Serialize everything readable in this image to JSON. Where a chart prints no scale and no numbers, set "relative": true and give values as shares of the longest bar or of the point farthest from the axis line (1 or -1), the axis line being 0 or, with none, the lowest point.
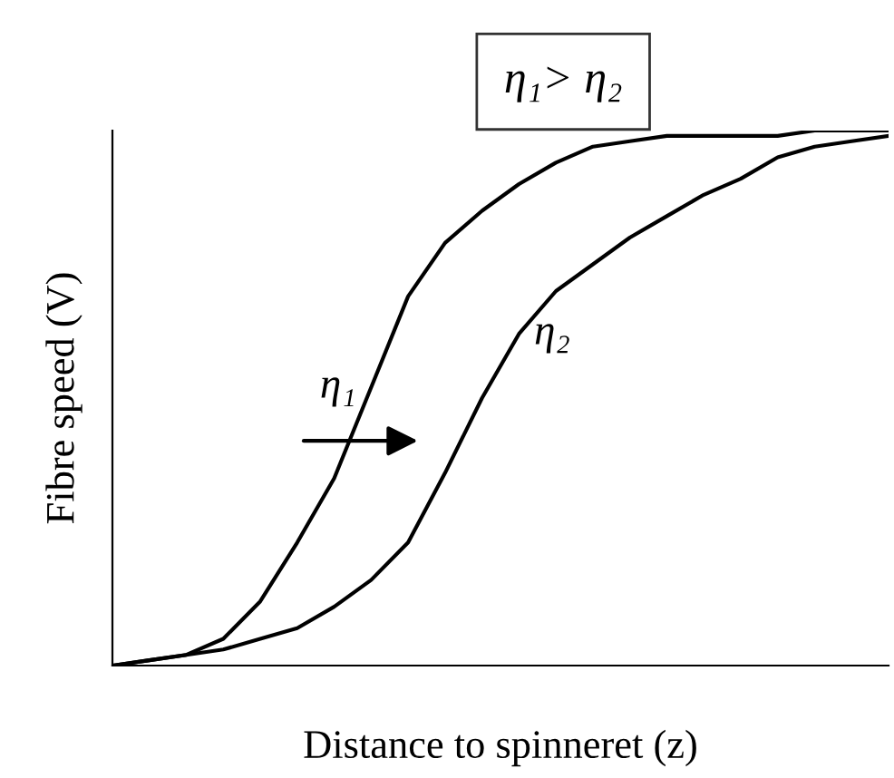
{
  "chart_data": {
    "type": "line",
    "title": "η₁> η₂",
    "xlabel": "Distance to spinneret (z)",
    "ylabel": "Fibre speed (V)",
    "relative": true,
    "categories": [
      null,
      null,
      null,
      null,
      null,
      null,
      null,
      null,
      null,
      null,
      null,
      null,
      null,
      null,
      null,
      null,
      null,
      null,
      null,
      null,
      null,
      null
    ],
    "series": [
      {
        "name": "η₁",
        "color": "#000000",
        "values": [
          0,
          0.01,
          0.02,
          0.05,
          0.12,
          0.23,
          0.35,
          0.52,
          0.69,
          0.79,
          0.85,
          0.9,
          0.94,
          0.97,
          0.98,
          0.99,
          0.99,
          0.99,
          0.99,
          1,
          1,
          1
        ]
      },
      {
        "name": "η₂",
        "color": "#000000",
        "values": [
          0,
          0.01,
          0.02,
          0.03,
          0.05,
          0.07,
          0.11,
          0.16,
          0.23,
          0.36,
          0.5,
          0.62,
          0.7,
          0.75,
          0.8,
          0.84,
          0.88,
          0.91,
          0.95,
          0.97,
          0.98,
          0.99
        ]
      }
    ],
    "grid": false,
    "legend": false,
    "marker": "none",
    "line_style": "solid"
  }
}
